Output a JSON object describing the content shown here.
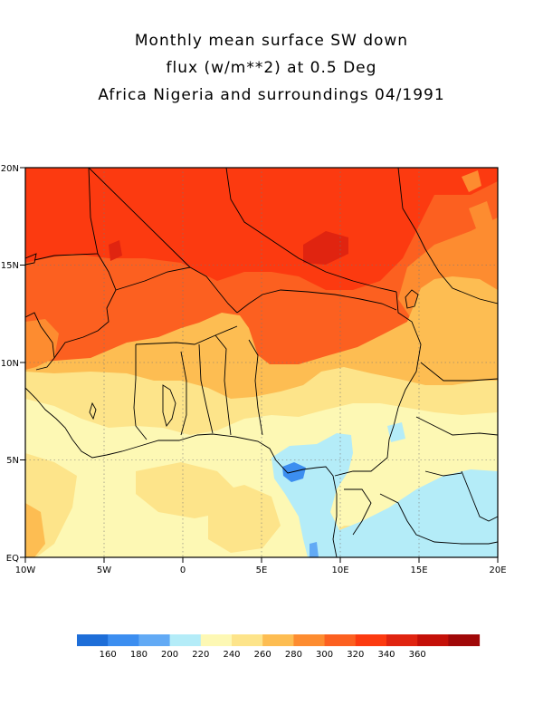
{
  "title": {
    "line1": "Monthly mean surface SW down",
    "line2": "flux (w/m**2) at 0.5 Deg",
    "line3": "Africa Nigeria and surroundings 04/1991"
  },
  "map": {
    "lon_range": [
      -10,
      20
    ],
    "lat_range": [
      0,
      20
    ],
    "x_ticks": [
      {
        "lon": -10,
        "label": "10W"
      },
      {
        "lon": -5,
        "label": "5W"
      },
      {
        "lon": 0,
        "label": "0"
      },
      {
        "lon": 5,
        "label": "5E"
      },
      {
        "lon": 10,
        "label": "10E"
      },
      {
        "lon": 15,
        "label": "15E"
      },
      {
        "lon": 20,
        "label": "20E"
      }
    ],
    "y_ticks": [
      {
        "lat": 20,
        "label": "20N"
      },
      {
        "lat": 15,
        "label": "15N"
      },
      {
        "lat": 10,
        "label": "10N"
      },
      {
        "lat": 5,
        "label": "5N"
      },
      {
        "lat": 0,
        "label": "EQ"
      }
    ],
    "grid": "dotted"
  },
  "colorbar": {
    "colors": [
      "#1e6ed8",
      "#3c8ef0",
      "#62aaf5",
      "#b4ecf8",
      "#fdf8b4",
      "#fde48a",
      "#fdbd52",
      "#fd8c30",
      "#fc6020",
      "#fc3a10",
      "#e02410",
      "#c41008",
      "#a00808"
    ],
    "labels": [
      "160",
      "180",
      "200",
      "220",
      "240",
      "260",
      "280",
      "300",
      "320",
      "340",
      "360"
    ]
  }
}
